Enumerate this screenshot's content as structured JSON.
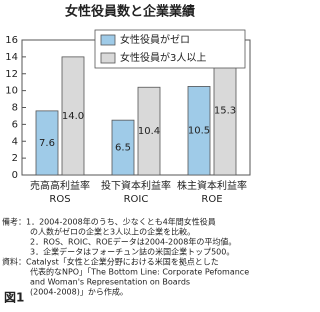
{
  "chart_data": {
    "type": "bar",
    "title": "女性役員数と企業業績",
    "categories": [
      [
        "売高高利益率",
        "ROS"
      ],
      [
        "投下資本利益率",
        "ROIC"
      ],
      [
        "株主資本利益率",
        "ROE"
      ]
    ],
    "series": [
      {
        "name": "女性役員がゼロ",
        "color": "#9fcbe8",
        "values": [
          7.6,
          6.5,
          10.5
        ],
        "value_labels": [
          "7.6",
          "6.5",
          "10.5"
        ]
      },
      {
        "name": "女性役員が3人以上",
        "color": "#d9d9d9",
        "values": [
          14.0,
          10.4,
          15.3
        ],
        "value_labels": [
          "14.0",
          "10.4",
          "15.3"
        ]
      }
    ],
    "ylim": [
      0,
      16
    ],
    "yticks": [
      0,
      2,
      4,
      6,
      8,
      10,
      12,
      14,
      16
    ],
    "grid": false,
    "legend": "upper right",
    "notes": [
      "備考：1．2004-2008年のうち、少なくとも4年間女性役員",
      "の人数がゼロの企業と3人以上の企業を比較。",
      "2．ROS、ROIC、ROEデータは2004-2008年の平均値。",
      "3．企業データはフォーチュン誌の米国企業トップ500。",
      "資料：Catalyst「女性と企業分野における米国を拠点とした",
      "代表的なNPO」「The Bottom Line: Corporate Pefomance",
      "and Woman's Representation on Boards",
      "(2004-2008)」から作成。"
    ],
    "figure_label": "図1"
  }
}
